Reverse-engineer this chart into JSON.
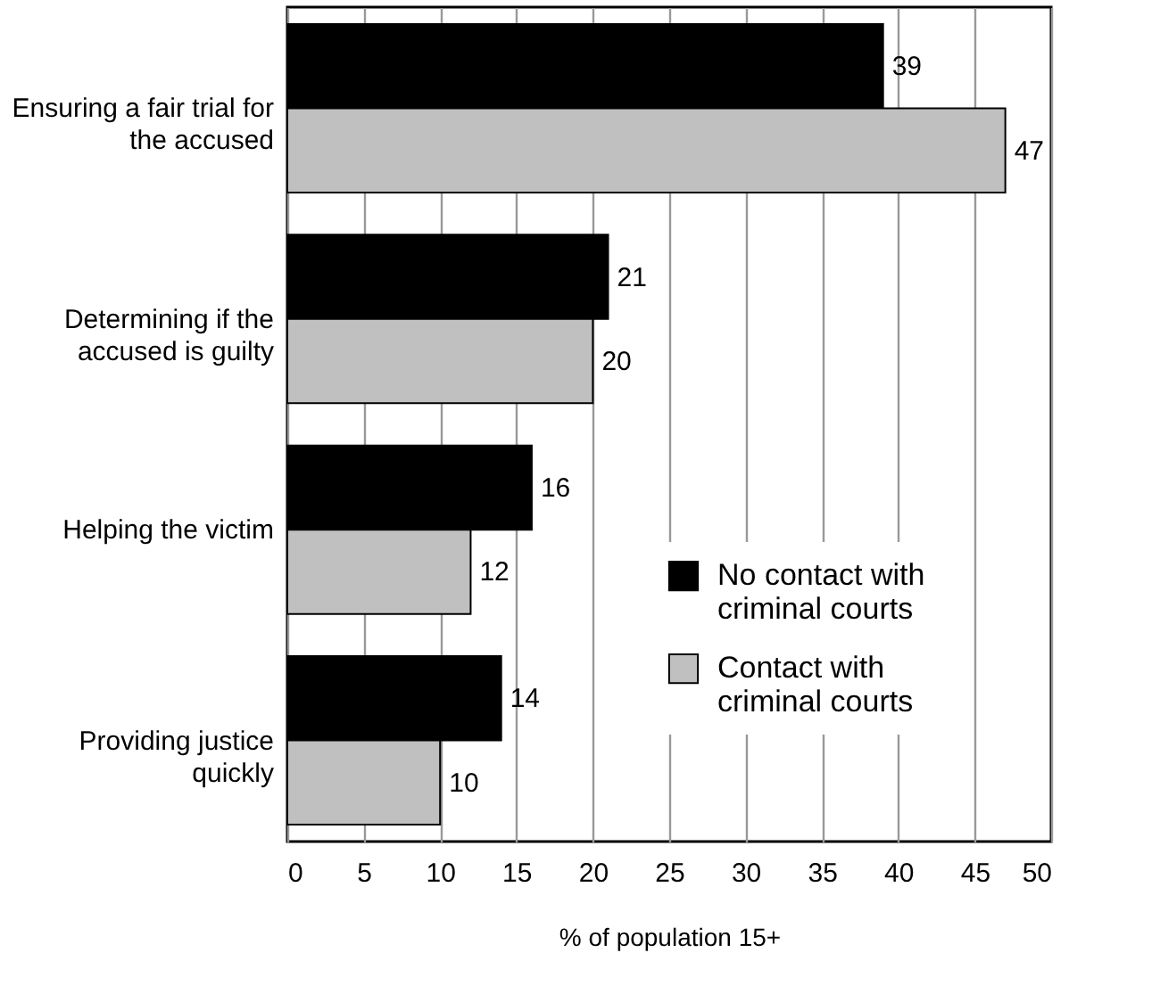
{
  "chart_data": {
    "type": "bar",
    "orientation": "horizontal",
    "xlabel": "% of population 15+",
    "categories": [
      "Ensuring a fair trial for\nthe accused",
      "Determining if the\naccused is guilty",
      "Helping the victim",
      "Providing justice\nquickly"
    ],
    "series": [
      {
        "name": "No contact with\ncriminal courts",
        "color": "#000000",
        "values": [
          39,
          21,
          16,
          14
        ]
      },
      {
        "name": "Contact with\ncriminal courts",
        "color": "#c0c0c0",
        "values": [
          47,
          20,
          12,
          10
        ]
      }
    ],
    "xlim": [
      0,
      50
    ],
    "xticks": [
      0,
      5,
      10,
      15,
      20,
      25,
      30,
      35,
      40,
      45,
      50
    ],
    "grid": "x",
    "legend": "bottom right",
    "data_labels": true
  }
}
